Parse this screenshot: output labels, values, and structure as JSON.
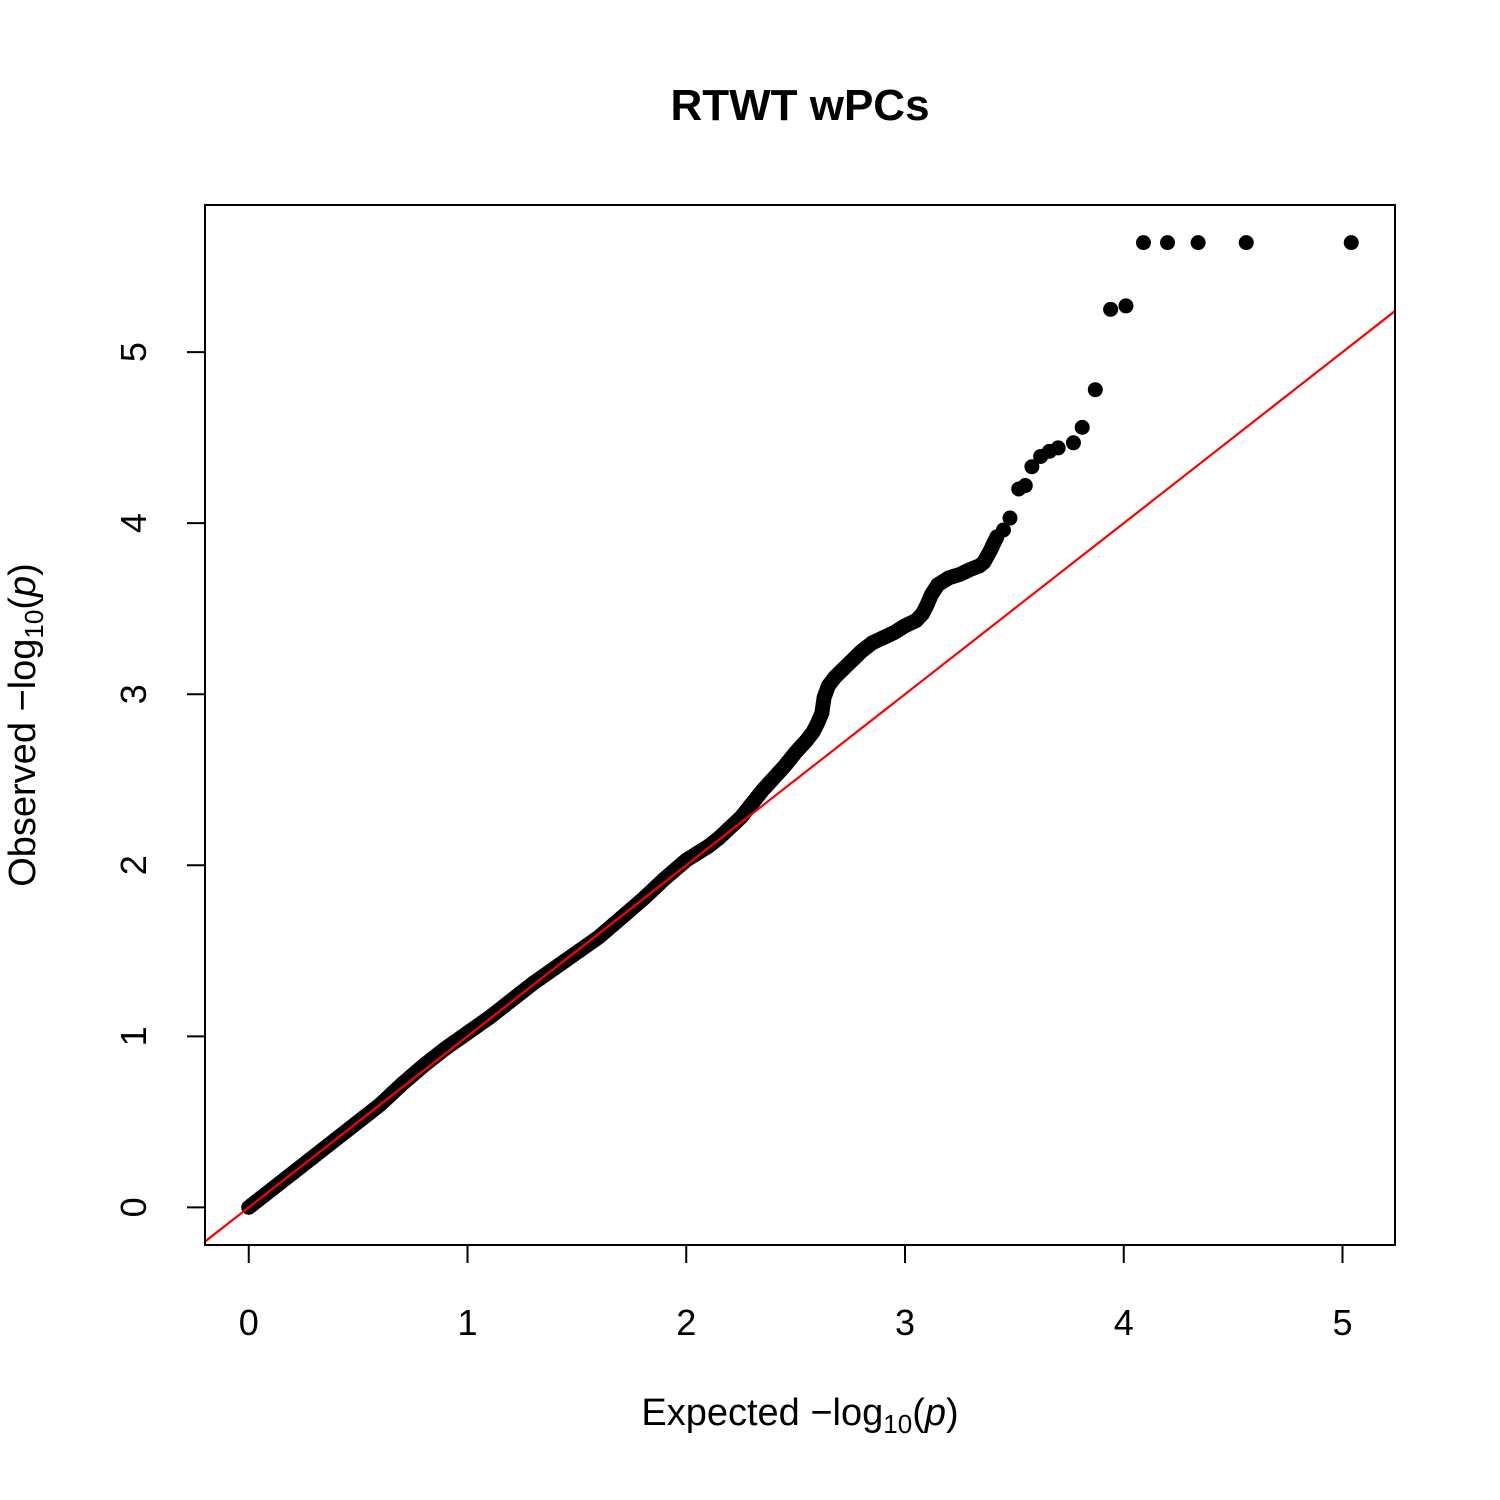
{
  "chart_data": {
    "type": "scatter",
    "title": "RTWT wPCs",
    "xlabel": {
      "prefix": "Expected  −log",
      "subscript": "10",
      "open": "(",
      "var": "p",
      "close": ")"
    },
    "ylabel": {
      "prefix": "Observed  −log",
      "subscript": "10",
      "open": "(",
      "var": "p",
      "close": ")"
    },
    "xlim": [
      -0.2,
      5.24
    ],
    "ylim": [
      -0.22,
      5.86
    ],
    "xticks": [
      0,
      1,
      2,
      3,
      4,
      5
    ],
    "xtick_labels": [
      "0",
      "1",
      "2",
      "3",
      "4",
      "5"
    ],
    "yticks": [
      0,
      1,
      2,
      3,
      4,
      5
    ],
    "ytick_labels": [
      "0",
      "1",
      "2",
      "3",
      "4",
      "5"
    ],
    "grid": false,
    "point_color": "#000000",
    "reference_line": {
      "slope": 1,
      "intercept": 0,
      "color": "#ff0000"
    },
    "points": {
      "x": [
        0.0,
        0.1,
        0.2,
        0.3,
        0.4,
        0.5,
        0.6,
        0.7,
        0.8,
        0.9,
        1.0,
        1.1,
        1.2,
        1.3,
        1.4,
        1.5,
        1.6,
        1.7,
        1.8,
        1.9,
        2.0,
        2.1,
        2.15,
        2.2,
        2.25,
        2.3,
        2.35,
        2.4,
        2.45,
        2.5,
        2.55,
        2.58,
        2.6,
        2.62,
        2.63,
        2.65,
        2.68,
        2.72,
        2.76,
        2.8,
        2.85,
        2.9,
        2.95,
        3.0,
        3.05,
        3.08,
        3.1,
        3.12,
        3.15,
        3.2,
        3.25,
        3.3,
        3.34,
        3.36,
        3.39,
        3.42,
        3.45,
        3.48,
        3.52,
        3.55,
        3.58,
        3.62,
        3.66,
        3.7,
        3.77,
        3.81,
        3.87,
        3.94,
        4.01,
        4.09,
        4.2,
        4.34,
        4.56,
        5.04
      ],
      "y": [
        0.0,
        0.1,
        0.2,
        0.3,
        0.4,
        0.5,
        0.6,
        0.72,
        0.83,
        0.93,
        1.02,
        1.11,
        1.21,
        1.31,
        1.4,
        1.49,
        1.58,
        1.69,
        1.8,
        1.92,
        2.03,
        2.11,
        2.16,
        2.22,
        2.28,
        2.36,
        2.44,
        2.51,
        2.58,
        2.66,
        2.73,
        2.78,
        2.83,
        2.89,
        2.98,
        3.05,
        3.1,
        3.15,
        3.2,
        3.25,
        3.3,
        3.33,
        3.36,
        3.4,
        3.43,
        3.47,
        3.52,
        3.58,
        3.64,
        3.68,
        3.7,
        3.73,
        3.75,
        3.77,
        3.84,
        3.92,
        3.96,
        4.03,
        4.2,
        4.22,
        4.33,
        4.39,
        4.42,
        4.44,
        4.47,
        4.56,
        4.78,
        5.25,
        5.27,
        5.64,
        5.64,
        5.64,
        5.64,
        5.64
      ]
    }
  }
}
